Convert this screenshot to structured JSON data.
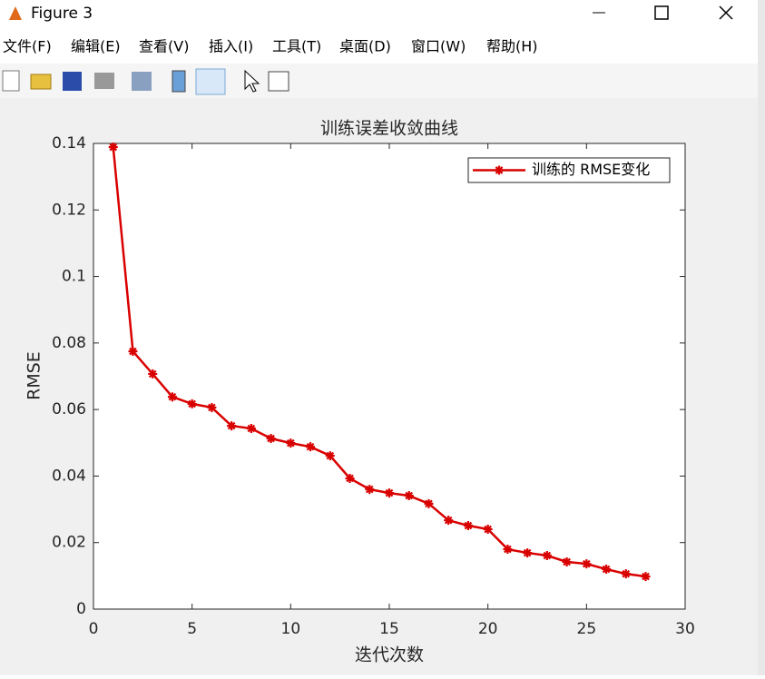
{
  "window": {
    "title": "Figure 3",
    "menu": [
      "文件(F)",
      "编辑(E)",
      "查看(V)",
      "插入(I)",
      "工具(T)",
      "桌面(D)",
      "窗口(W)",
      "帮助(H)"
    ]
  },
  "chart_data": {
    "type": "line",
    "title": "训练误差收敛曲线",
    "xlabel": "迭代次数",
    "ylabel": "RMSE",
    "x": [
      1,
      2,
      3,
      4,
      5,
      6,
      7,
      8,
      9,
      10,
      11,
      12,
      13,
      14,
      15,
      16,
      17,
      18,
      19,
      20,
      21,
      22,
      23,
      24,
      25,
      26,
      27,
      28
    ],
    "series": [
      {
        "name": "训练的 RMSE变化",
        "color": "#d90000",
        "values": [
          0.1389,
          0.0775,
          0.0707,
          0.0638,
          0.0617,
          0.0606,
          0.0551,
          0.0543,
          0.0513,
          0.0499,
          0.0488,
          0.0461,
          0.0393,
          0.036,
          0.0349,
          0.0341,
          0.0317,
          0.0267,
          0.0251,
          0.024,
          0.018,
          0.0169,
          0.0161,
          0.0142,
          0.0136,
          0.012,
          0.0106,
          0.0098
        ]
      }
    ],
    "marker": "*",
    "xlim": [
      0,
      30
    ],
    "xticks": [
      0,
      5,
      10,
      15,
      20,
      25,
      30
    ],
    "ylim": [
      0,
      0.14
    ],
    "yticks": [
      0,
      0.02,
      0.04,
      0.06,
      0.08,
      0.1,
      0.12,
      0.14
    ],
    "legend": "northeast",
    "grid": false
  }
}
